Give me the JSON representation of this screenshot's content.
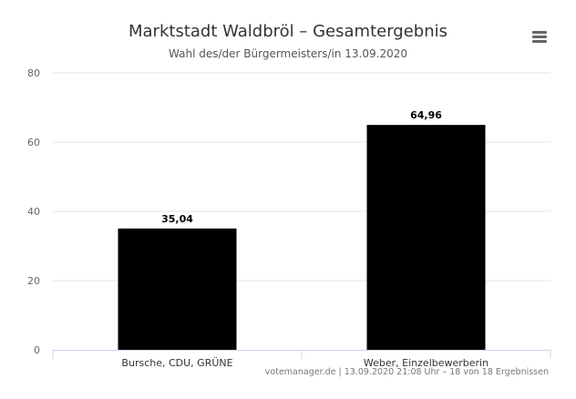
{
  "menu": {
    "icon": "hamburger-menu-icon"
  },
  "credits": "votemanager.de | 13.09.2020 21:08 Uhr – 18 von 18 Ergebnissen",
  "chart_data": {
    "type": "bar",
    "title": "Marktstadt Waldbröl – Gesamtergebnis",
    "subtitle": "Wahl des/der Bürgermeisters/in 13.09.2020",
    "categories": [
      "Bursche, CDU, GRÜNE",
      "Weber, Einzelbewerberin"
    ],
    "values": [
      35.04,
      64.96
    ],
    "data_labels": [
      "35,04",
      "64,96"
    ],
    "yticks": [
      0,
      20,
      40,
      60,
      80
    ],
    "ylim": [
      0,
      80
    ],
    "xlabel": "",
    "ylabel": "",
    "grid": true,
    "colors": {
      "bar": "#000000",
      "grid": "#e6e6e6",
      "axis": "#ccd6eb"
    }
  }
}
